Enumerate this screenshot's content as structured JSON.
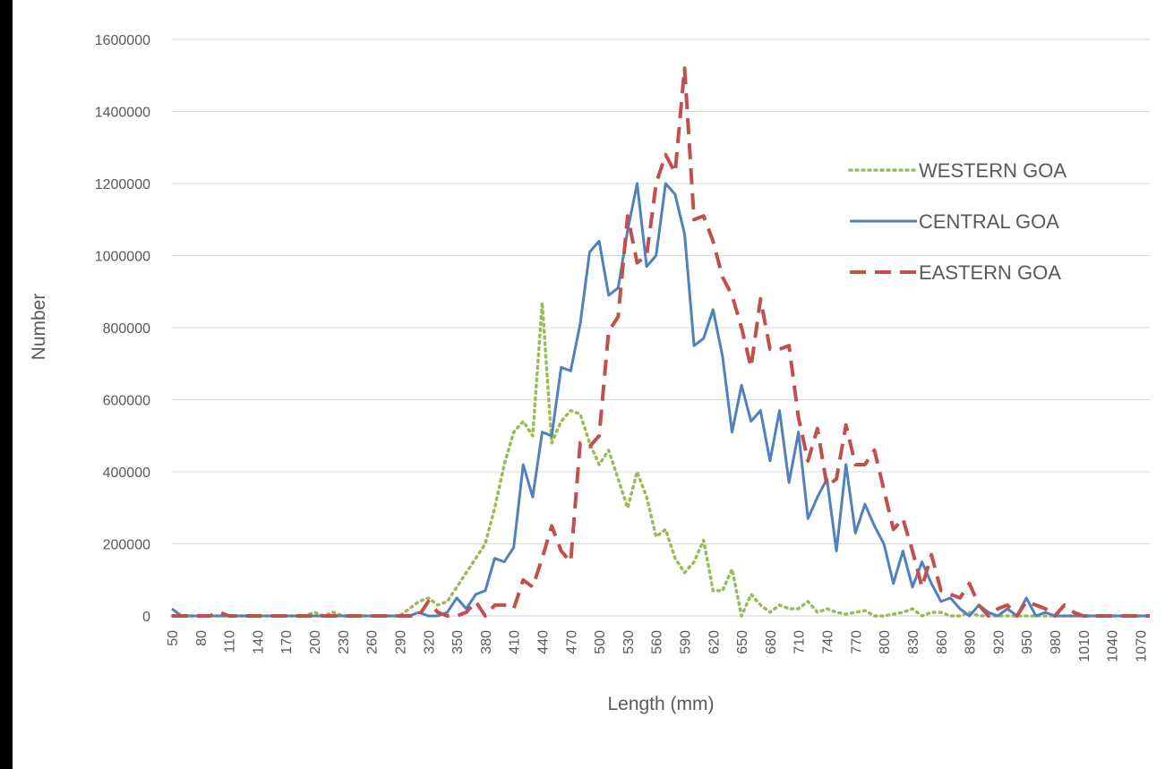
{
  "chart_data": {
    "type": "line",
    "title": "",
    "xlabel": "Length (mm)",
    "ylabel": "Number",
    "ylim": [
      0,
      1600000
    ],
    "y_ticks": [
      0,
      200000,
      400000,
      600000,
      800000,
      1000000,
      1200000,
      1400000,
      1600000
    ],
    "x_tick_labels": [
      "50",
      "80",
      "110",
      "140",
      "170",
      "200",
      "230",
      "260",
      "290",
      "320",
      "350",
      "380",
      "410",
      "440",
      "470",
      "500",
      "530",
      "560",
      "590",
      "620",
      "650",
      "680",
      "710",
      "740",
      "770",
      "800",
      "830",
      "860",
      "890",
      "920",
      "950",
      "980",
      "1010",
      "1040",
      "1070"
    ],
    "x": [
      50,
      60,
      70,
      80,
      90,
      100,
      110,
      120,
      130,
      140,
      150,
      160,
      170,
      180,
      190,
      200,
      210,
      220,
      230,
      240,
      250,
      260,
      270,
      280,
      290,
      300,
      310,
      320,
      330,
      340,
      350,
      360,
      370,
      380,
      390,
      400,
      410,
      420,
      430,
      440,
      450,
      460,
      470,
      480,
      490,
      500,
      510,
      520,
      530,
      540,
      550,
      560,
      570,
      580,
      590,
      600,
      610,
      620,
      630,
      640,
      650,
      660,
      670,
      680,
      690,
      700,
      710,
      720,
      730,
      740,
      750,
      760,
      770,
      780,
      790,
      800,
      810,
      820,
      830,
      840,
      850,
      860,
      870,
      880,
      890,
      900,
      910,
      920,
      930,
      940,
      950,
      960,
      970,
      980,
      990,
      1000,
      1010,
      1020,
      1030,
      1040,
      1050,
      1060,
      1070,
      1080
    ],
    "grid": true,
    "legend_position": "right",
    "series": [
      {
        "name": "WESTERN GOA",
        "color": "#9BBB59",
        "style": "dotted",
        "values": [
          0,
          0,
          0,
          0,
          0,
          0,
          0,
          0,
          0,
          0,
          0,
          0,
          0,
          0,
          0,
          10000,
          0,
          10000,
          0,
          0,
          0,
          0,
          0,
          0,
          0,
          20000,
          40000,
          50000,
          30000,
          40000,
          80000,
          120000,
          160000,
          200000,
          300000,
          420000,
          510000,
          540000,
          500000,
          870000,
          480000,
          540000,
          570000,
          560000,
          480000,
          420000,
          460000,
          380000,
          300000,
          400000,
          330000,
          220000,
          240000,
          160000,
          120000,
          150000,
          210000,
          70000,
          70000,
          130000,
          0,
          60000,
          30000,
          10000,
          30000,
          20000,
          20000,
          40000,
          10000,
          20000,
          10000,
          5000,
          10000,
          15000,
          0,
          0,
          5000,
          10000,
          20000,
          0,
          10000,
          10000,
          0,
          0,
          10000,
          0,
          0,
          0,
          0,
          0,
          0,
          0,
          0,
          0,
          0,
          0,
          0,
          0,
          0,
          0,
          0,
          0,
          0,
          0
        ]
      },
      {
        "name": "CENTRAL GOA",
        "color": "#4F81BD",
        "style": "solid",
        "values": [
          20000,
          0,
          0,
          0,
          0,
          0,
          0,
          0,
          0,
          0,
          0,
          0,
          0,
          0,
          0,
          0,
          0,
          0,
          0,
          0,
          0,
          0,
          0,
          0,
          0,
          0,
          10000,
          0,
          0,
          10000,
          50000,
          20000,
          60000,
          70000,
          160000,
          150000,
          190000,
          420000,
          330000,
          510000,
          500000,
          690000,
          680000,
          810000,
          1010000,
          1040000,
          890000,
          910000,
          1070000,
          1200000,
          970000,
          1000000,
          1200000,
          1170000,
          1060000,
          750000,
          770000,
          850000,
          720000,
          510000,
          640000,
          540000,
          570000,
          430000,
          570000,
          370000,
          510000,
          270000,
          330000,
          380000,
          180000,
          420000,
          230000,
          310000,
          250000,
          200000,
          90000,
          180000,
          80000,
          150000,
          90000,
          40000,
          50000,
          20000,
          0,
          30000,
          10000,
          0,
          20000,
          0,
          50000,
          0,
          10000,
          0,
          0,
          0,
          0,
          0,
          0,
          0,
          0,
          0,
          0,
          0
        ]
      },
      {
        "name": "EASTERN GOA",
        "color": "#C0504D",
        "style": "dashed",
        "values": [
          0,
          0,
          0,
          0,
          0,
          10000,
          0,
          0,
          0,
          0,
          0,
          0,
          0,
          0,
          0,
          0,
          0,
          0,
          0,
          0,
          0,
          0,
          0,
          0,
          0,
          0,
          0,
          40000,
          10000,
          0,
          0,
          10000,
          40000,
          0,
          30000,
          30000,
          20000,
          100000,
          80000,
          160000,
          250000,
          180000,
          150000,
          480000,
          470000,
          500000,
          790000,
          830000,
          1110000,
          980000,
          1000000,
          1200000,
          1280000,
          1230000,
          1520000,
          1100000,
          1110000,
          1040000,
          940000,
          890000,
          800000,
          690000,
          880000,
          740000,
          740000,
          750000,
          550000,
          430000,
          520000,
          360000,
          380000,
          530000,
          420000,
          420000,
          460000,
          350000,
          240000,
          270000,
          180000,
          80000,
          170000,
          70000,
          60000,
          50000,
          90000,
          30000,
          0,
          20000,
          30000,
          0,
          40000,
          30000,
          20000,
          0,
          30000,
          10000,
          0,
          0,
          0,
          0,
          0,
          0,
          0,
          0
        ]
      }
    ]
  }
}
